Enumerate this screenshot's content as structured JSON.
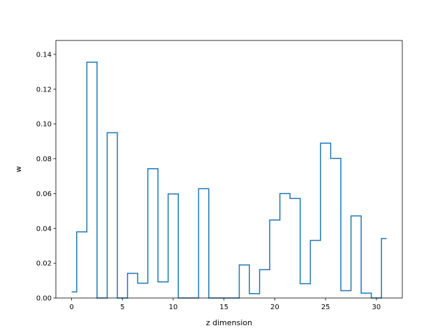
{
  "chart_data": {
    "type": "line",
    "drawstyle": "steps-mid",
    "title": "",
    "xlabel": "z dimension",
    "ylabel": "w",
    "x": [
      0,
      1,
      2,
      3,
      4,
      5,
      6,
      7,
      8,
      9,
      10,
      11,
      12,
      13,
      14,
      15,
      16,
      17,
      18,
      19,
      20,
      21,
      22,
      23,
      24,
      25,
      26,
      27,
      28,
      29,
      30,
      31
    ],
    "series": [
      {
        "color": "#1f77b4",
        "values": [
          0.0035,
          0.038,
          0.1355,
          0.0,
          0.095,
          0.0,
          0.0142,
          0.0085,
          0.0743,
          0.0093,
          0.0598,
          0.0,
          0.0,
          0.0628,
          0.0,
          0.0,
          0.0,
          0.019,
          0.0025,
          0.0163,
          0.0448,
          0.06,
          0.0572,
          0.0082,
          0.0331,
          0.089,
          0.0802,
          0.0042,
          0.0472,
          0.0028,
          0.0,
          0.0342
        ]
      }
    ],
    "xlim": [
      -1.55,
      32.55
    ],
    "ylim": [
      0,
      0.148
    ],
    "xticks": [
      0,
      5,
      10,
      15,
      20,
      25,
      30
    ],
    "xtick_labels": [
      "0",
      "5",
      "10",
      "15",
      "20",
      "25",
      "30"
    ],
    "yticks": [
      0,
      0.02,
      0.04,
      0.06,
      0.08,
      0.1,
      0.12,
      0.14
    ],
    "ytick_labels": [
      "0.00",
      "0.02",
      "0.04",
      "0.06",
      "0.08",
      "0.10",
      "0.12",
      "0.14"
    ],
    "grid": false,
    "legend": false
  }
}
